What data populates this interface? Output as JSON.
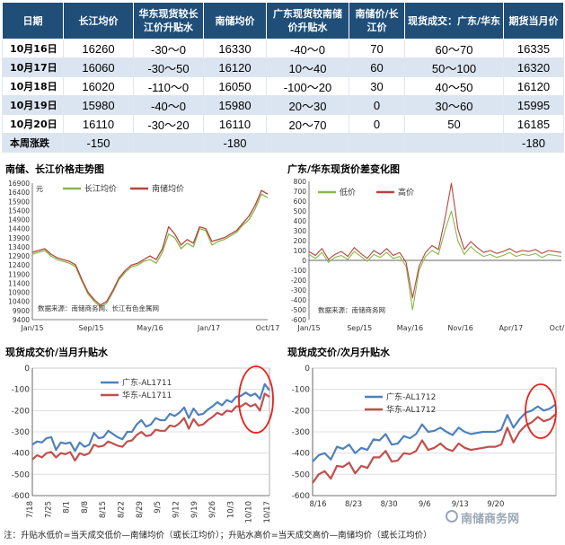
{
  "table": {
    "headers": [
      "日期",
      "长江均价",
      "华东现货较长江价升贴水",
      "南储均价",
      "广东现货较南储价升贴水",
      "南储价/长江价",
      "现货成交：广东/华东",
      "期货当月价"
    ],
    "rows": [
      [
        "10月16日",
        "16260",
        "-30～0",
        "16330",
        "-40～0",
        "70",
        "60～70",
        "16335"
      ],
      [
        "10月17日",
        "16060",
        "-30～50",
        "16120",
        "10～40",
        "60",
        "50～100",
        "16320"
      ],
      [
        "10月18日",
        "16020",
        "-110～0",
        "16050",
        "-100～20",
        "30",
        "40～50",
        "16120"
      ],
      [
        "10月19日",
        "15980",
        "-40～0",
        "15980",
        "20～30",
        "0",
        "30～60",
        "15995"
      ],
      [
        "10月20日",
        "16110",
        "-30～20",
        "16110",
        "20～70",
        "0",
        "50",
        "16185"
      ],
      [
        "本周涨跌",
        "-150",
        "",
        "-180",
        "",
        "",
        "",
        "-180"
      ]
    ]
  },
  "charts": {
    "c1": {
      "title": "南储、长江价格走势图",
      "source": "数据来源：南储商务网、长江有色金属网",
      "unit": "元"
    },
    "c2": {
      "title": "广东/华东现货价差变化图",
      "source": "数据来源：南储商务网"
    },
    "c3": {
      "title": "现货成交价/当月升贴水"
    },
    "c4": {
      "title": "现货成交价/次月升贴水"
    }
  },
  "note": "注：升贴水低价=当天成交低价—南储均价（或长江均价）；升贴水高价=当天成交高价—南储均价（或长江均价）",
  "watermark": "南储商务网",
  "chart_data": [
    {
      "type": "line",
      "title": "南储、长江价格走势图",
      "ylabel": "元",
      "x_ticks": [
        "Jan/15",
        "Sep/15",
        "May/16",
        "Jan/17",
        "Oct/17"
      ],
      "ylim": [
        9400,
        16900
      ],
      "y_ticks": [
        9400,
        9900,
        10400,
        10900,
        11400,
        11900,
        12400,
        12900,
        13400,
        13900,
        14400,
        14900,
        15400,
        15900,
        16400,
        16900
      ],
      "legend": "top",
      "colors": {
        "长江均价": "#8ab84a",
        "南储均价": "#b5443f"
      },
      "series": [
        {
          "name": "长江均价",
          "values": [
            13000,
            13100,
            13200,
            12900,
            12700,
            12600,
            12500,
            12300,
            11500,
            10800,
            10400,
            10100,
            10300,
            10900,
            11600,
            12000,
            12300,
            12400,
            12600,
            12700,
            12500,
            13100,
            14100,
            13900,
            13300,
            13600,
            13400,
            14400,
            14300,
            13500,
            13700,
            13800,
            14000,
            14200,
            14600,
            14900,
            15500,
            16300,
            16100
          ]
        },
        {
          "name": "南储均价",
          "values": [
            13100,
            13200,
            13300,
            13000,
            12800,
            12700,
            12600,
            12400,
            11600,
            10900,
            10500,
            10200,
            10400,
            11000,
            11700,
            12100,
            12400,
            12500,
            12700,
            12900,
            12700,
            13300,
            14500,
            14100,
            13500,
            13800,
            13600,
            14500,
            14400,
            13700,
            13800,
            13900,
            14100,
            14300,
            14700,
            15100,
            15700,
            16500,
            16300
          ]
        }
      ]
    },
    {
      "type": "line",
      "title": "广东/华东现货价差变化图",
      "x_ticks": [
        "Jan/15",
        "Sep/15",
        "May/16",
        "Nov/16",
        "Apr/17",
        "Oct/17"
      ],
      "ylim": [
        -600,
        800
      ],
      "y_ticks": [
        -600,
        -500,
        -400,
        -300,
        -200,
        -100,
        0,
        100,
        200,
        300,
        400,
        500,
        600,
        700,
        800
      ],
      "legend": "top",
      "colors": {
        "低价": "#8ab84a",
        "高价": "#b5443f"
      },
      "series": [
        {
          "name": "低价",
          "values": [
            60,
            20,
            80,
            -20,
            30,
            50,
            10,
            90,
            40,
            -10,
            60,
            30,
            80,
            20,
            40,
            -60,
            -500,
            -100,
            40,
            100,
            60,
            300,
            500,
            200,
            60,
            140,
            80,
            40,
            60,
            30,
            50,
            80,
            40,
            60,
            50,
            70,
            30,
            60,
            50,
            40
          ]
        },
        {
          "name": "高价",
          "values": [
            90,
            50,
            120,
            10,
            60,
            90,
            40,
            130,
            70,
            20,
            100,
            60,
            120,
            50,
            80,
            -20,
            -380,
            -60,
            80,
            150,
            110,
            420,
            780,
            320,
            110,
            190,
            130,
            80,
            100,
            70,
            90,
            120,
            80,
            100,
            90,
            110,
            70,
            100,
            90,
            80
          ]
        }
      ]
    },
    {
      "type": "line",
      "title": "现货成交价/当月升贴水",
      "x_ticks": [
        "7/18",
        "7/25",
        "8/1",
        "8/8",
        "8/15",
        "8/22",
        "8/29",
        "9/5",
        "9/12",
        "9/19",
        "9/26",
        "10/3",
        "10/10",
        "10/17"
      ],
      "ylim": [
        -600,
        0
      ],
      "y_ticks": [
        -600,
        -500,
        -400,
        -300,
        -200,
        -100,
        0
      ],
      "legend": "inside",
      "colors": {
        "广东-AL1711": "#4f81bd",
        "华东-AL1711": "#c0504d"
      },
      "series": [
        {
          "name": "广东-AL1711",
          "values": [
            -360,
            -345,
            -350,
            -330,
            -325,
            -385,
            -350,
            -355,
            -350,
            -390,
            -350,
            -370,
            -360,
            -305,
            -330,
            -325,
            -295,
            -310,
            -325,
            -335,
            -300,
            -300,
            -265,
            -245,
            -275,
            -265,
            -235,
            -245,
            -245,
            -215,
            -225,
            -210,
            -185,
            -235,
            -190,
            -220,
            -215,
            -195,
            -180,
            -160,
            -175,
            -150,
            -160,
            -135,
            -130,
            -115,
            -130,
            -120,
            -145,
            -75,
            -105
          ]
        },
        {
          "name": "华东-AL1711",
          "values": [
            -430,
            -410,
            -420,
            -400,
            -395,
            -420,
            -400,
            -405,
            -395,
            -435,
            -400,
            -410,
            -400,
            -360,
            -370,
            -365,
            -345,
            -355,
            -365,
            -370,
            -345,
            -340,
            -315,
            -300,
            -320,
            -315,
            -290,
            -295,
            -295,
            -270,
            -275,
            -260,
            -235,
            -285,
            -240,
            -270,
            -265,
            -245,
            -230,
            -210,
            -220,
            -200,
            -205,
            -180,
            -180,
            -165,
            -180,
            -170,
            -200,
            -120,
            -135
          ]
        }
      ]
    },
    {
      "type": "line",
      "title": "现货成交价/次月升贴水",
      "x_ticks": [
        "8/16",
        "8/23",
        "8/30",
        "9/6",
        "9/13",
        "9/20"
      ],
      "ylim": [
        -600,
        0
      ],
      "y_ticks": [
        -600,
        -500,
        -400,
        -300,
        -200,
        -100,
        0
      ],
      "legend": "inside",
      "colors": {
        "广东-AL1712": "#4f81bd",
        "华东-AL1712": "#c0504d"
      },
      "series": [
        {
          "name": "广东-AL1712",
          "values": [
            -440,
            -410,
            -400,
            -430,
            -370,
            -380,
            -360,
            -400,
            -375,
            -385,
            -335,
            -340,
            -310,
            -360,
            -355,
            -320,
            -330,
            -310,
            -265,
            -300,
            -295,
            -280,
            -300,
            -315,
            -280,
            -300,
            -310,
            -305,
            -300,
            -300,
            -300,
            -290,
            -220,
            -280,
            -240,
            -210,
            -200,
            -180,
            -200,
            -190,
            -170
          ]
        },
        {
          "name": "华东-AL1712",
          "values": [
            -540,
            -500,
            -485,
            -520,
            -460,
            -465,
            -445,
            -495,
            -460,
            -470,
            -420,
            -420,
            -390,
            -440,
            -435,
            -400,
            -405,
            -390,
            -340,
            -385,
            -375,
            -355,
            -380,
            -390,
            -355,
            -375,
            -385,
            -380,
            -375,
            -370,
            -370,
            -360,
            -280,
            -350,
            -300,
            -270,
            -255,
            -230,
            -250,
            -240,
            -215
          ]
        }
      ]
    }
  ]
}
